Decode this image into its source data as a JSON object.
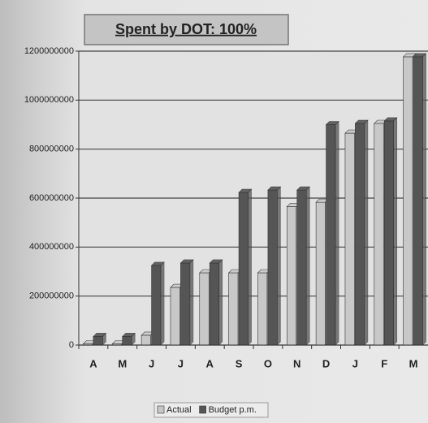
{
  "chart_data": {
    "type": "bar",
    "title": "Spent by DOT: 100%",
    "categories": [
      "A",
      "M",
      "J",
      "J",
      "A",
      "S",
      "O",
      "N",
      "D",
      "J",
      "F",
      "M"
    ],
    "series": [
      {
        "name": "Actual",
        "color": "#c8c8c8",
        "values": [
          5000000,
          5000000,
          40000000,
          235000000,
          295000000,
          295000000,
          295000000,
          565000000,
          583000000,
          865000000,
          905000000,
          1177000000
        ]
      },
      {
        "name": "Budget p.m.",
        "color": "#555555",
        "values": [
          35000000,
          35000000,
          325000000,
          335000000,
          335000000,
          623000000,
          633000000,
          633000000,
          900000000,
          905000000,
          915000000,
          1177000000
        ]
      }
    ],
    "ylim": [
      0,
      1200000000
    ],
    "yticks": [
      0,
      200000000,
      400000000,
      600000000,
      800000000,
      1000000000,
      1200000000
    ],
    "grid": true,
    "legend": "bottom"
  }
}
